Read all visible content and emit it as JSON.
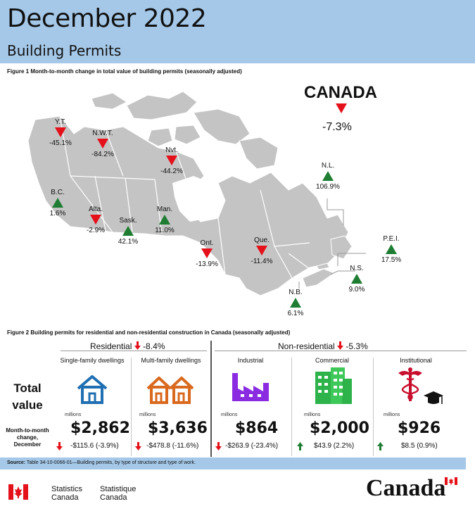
{
  "header": {
    "title": "December 2022",
    "subtitle": "Building Permits"
  },
  "figure1_caption": "Figure 1  Month-to-month change in total value of building permits (seasonally adjusted)",
  "canada": {
    "label": "CANADA",
    "change": "-7.3%"
  },
  "provinces": [
    {
      "key": "yt",
      "name": "Y.T.",
      "change": "-45.1%",
      "direction": "down"
    },
    {
      "key": "nwt",
      "name": "N.W.T.",
      "change": "-84.2%",
      "direction": "down"
    },
    {
      "key": "nvt",
      "name": "Nvt.",
      "change": "-44.2%",
      "direction": "down"
    },
    {
      "key": "bc",
      "name": "B.C.",
      "change": "1.6%",
      "direction": "up"
    },
    {
      "key": "alta",
      "name": "Alta.",
      "change": "-2.9%",
      "direction": "down"
    },
    {
      "key": "sask",
      "name": "Sask.",
      "change": "42.1%",
      "direction": "up"
    },
    {
      "key": "man",
      "name": "Man.",
      "change": "11.0%",
      "direction": "up"
    },
    {
      "key": "ont",
      "name": "Ont.",
      "change": "-13.9%",
      "direction": "down"
    },
    {
      "key": "que",
      "name": "Que.",
      "change": "-11.4%",
      "direction": "down"
    },
    {
      "key": "nl",
      "name": "N.L.",
      "change": "106.9%",
      "direction": "up"
    },
    {
      "key": "pei",
      "name": "P.E.I.",
      "change": "17.5%",
      "direction": "up"
    },
    {
      "key": "ns",
      "name": "N.S.",
      "change": "9.0%",
      "direction": "up"
    },
    {
      "key": "nb",
      "name": "N.B.",
      "change": "6.1%",
      "direction": "up"
    }
  ],
  "figure2_caption": "Figure 2  Building permits for residential and non-residential construction in Canada (seasonally adjusted)",
  "residential": {
    "label": "Residential",
    "change": "-8.4%"
  },
  "nonresidential": {
    "label": "Non-residential",
    "change": "-5.3%"
  },
  "row_labels": {
    "total_value": "Total value",
    "mtm": "Month-to-month change, December"
  },
  "categories": [
    {
      "key": "single",
      "title": "Single-family dwellings",
      "unit": "millions",
      "value": "$2,862",
      "change": "-$115.6 (-3.9%)",
      "direction": "down"
    },
    {
      "key": "multi",
      "title": "Multi-family dwellings",
      "unit": "millions",
      "value": "$3,636",
      "change": "-$478.8 (-11.6%)",
      "direction": "down"
    },
    {
      "key": "industrial",
      "title": "Industrial",
      "unit": "millions",
      "value": "$864",
      "change": "-$263.9 (-23.4%)",
      "direction": "down"
    },
    {
      "key": "commercial",
      "title": "Commercial",
      "unit": "millions",
      "value": "$2,000",
      "change": "$43.9 (2.2%)",
      "direction": "up"
    },
    {
      "key": "institutional",
      "title": "Institutional",
      "unit": "millions",
      "value": "$926",
      "change": "$8.5 (0.9%)",
      "direction": "up"
    }
  ],
  "source": {
    "label": "Source:",
    "text": "Table 34-10-0066-01—Building permits, by type of structure and type of work."
  },
  "footer": {
    "en_line1": "Statistics",
    "en_line2": "Canada",
    "fr_line1": "Statistique",
    "fr_line2": "Canada",
    "wordmark": "Canada"
  },
  "colors": {
    "header": "#a5c8e8",
    "up": "#1e7d32",
    "down": "#e4101a",
    "map": "#c4c4c4"
  }
}
